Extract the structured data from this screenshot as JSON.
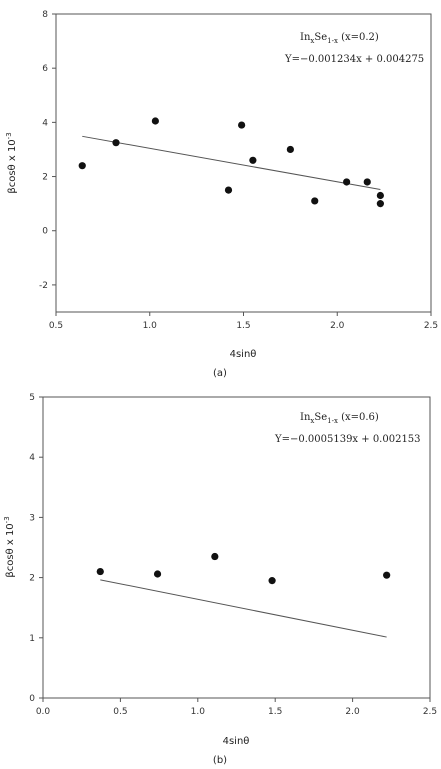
{
  "chart_data": [
    {
      "type": "scatter",
      "panel_label": "(a)",
      "xlabel": "4sinθ",
      "ylabel": "βcosθ x 10",
      "ylabel_exp": "-3",
      "xlim": [
        0.5,
        2.5
      ],
      "ylim": [
        -3,
        8
      ],
      "xticks": [
        "0.5",
        "1.0",
        "1.5",
        "2.0",
        "2.5"
      ],
      "yticks": [
        "-2",
        "0",
        "2",
        "4",
        "6",
        "8"
      ],
      "xtick_values": [
        0.5,
        1.0,
        1.5,
        2.0,
        2.5
      ],
      "ytick_values": [
        -2,
        0,
        2,
        4,
        6,
        8
      ],
      "annotation_formula": {
        "a": "In",
        "b": "x",
        "c": "Se",
        "d": "1-x",
        "e": " (x=0.2)"
      },
      "annotation_equation": "Y=−0.001234x + 0.004275",
      "points": [
        {
          "x": 0.64,
          "y": 2.4
        },
        {
          "x": 0.82,
          "y": 3.25
        },
        {
          "x": 1.03,
          "y": 4.05
        },
        {
          "x": 1.42,
          "y": 1.5
        },
        {
          "x": 1.49,
          "y": 3.9
        },
        {
          "x": 1.55,
          "y": 2.6
        },
        {
          "x": 1.75,
          "y": 3.0
        },
        {
          "x": 1.88,
          "y": 1.1
        },
        {
          "x": 2.05,
          "y": 1.8
        },
        {
          "x": 2.16,
          "y": 1.8
        },
        {
          "x": 2.23,
          "y": 1.3
        },
        {
          "x": 2.23,
          "y": 1.0
        }
      ],
      "fit": {
        "slope": -1.234,
        "intercept": 4.275,
        "x_from": 0.64,
        "x_to": 2.23
      },
      "grid": false
    },
    {
      "type": "scatter",
      "panel_label": "(b)",
      "xlabel": "4sinθ",
      "ylabel": "βcosθ x 10",
      "ylabel_exp": "-3",
      "xlim": [
        0.0,
        2.5
      ],
      "ylim": [
        0,
        5
      ],
      "xticks": [
        "0.0",
        "0.5",
        "1.0",
        "1.5",
        "2.0",
        "2.5"
      ],
      "yticks": [
        "0",
        "1",
        "2",
        "3",
        "4",
        "5"
      ],
      "xtick_values": [
        0.0,
        0.5,
        1.0,
        1.5,
        2.0,
        2.5
      ],
      "ytick_values": [
        0,
        1,
        2,
        3,
        4,
        5
      ],
      "annotation_formula": {
        "a": "In",
        "b": "x",
        "c": "Se",
        "d": "1-x",
        "e": " (x=0.6)"
      },
      "annotation_equation": "Y=−0.0005139x + 0.002153",
      "points": [
        {
          "x": 0.37,
          "y": 2.1
        },
        {
          "x": 0.74,
          "y": 2.06
        },
        {
          "x": 1.11,
          "y": 2.35
        },
        {
          "x": 1.48,
          "y": 1.95
        },
        {
          "x": 2.22,
          "y": 2.04
        }
      ],
      "fit": {
        "slope": -0.5139,
        "intercept": 2.153,
        "x_from": 0.37,
        "x_to": 2.22
      },
      "grid": false
    }
  ]
}
